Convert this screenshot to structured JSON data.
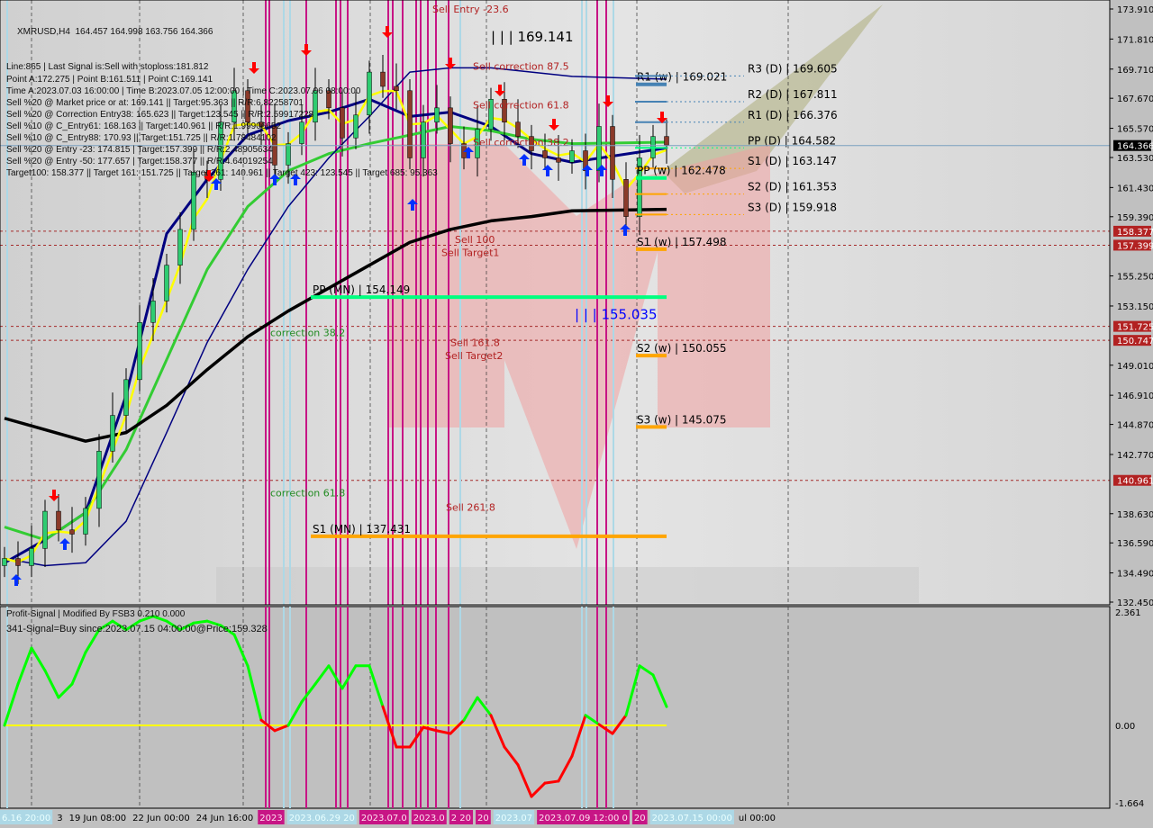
{
  "header": {
    "symbol_line": "XMRUSD,H4  164.457 164.998 163.756 164.366",
    "info_lines": [
      "Line:865 | Last Signal is:Sell with stoploss:181.812",
      "Point A:172.275 | Point B:161.511 | Point C:169.141",
      "Time A:2023.07.03 16:00:00 | Time B:2023.07.05 12:00:00 | Time C:2023.07.06 08:00:00",
      "Sell %20 @ Market price or at: 169.141 || Target:95.363 || R/R:6.82258701",
      "Sell %20 @ Correction Entry38: 165.623 || Target:123.545 || R/R:2.59917228",
      "Sell %10 @ C_Entry61: 168.163 || Target:140.961 || R/R:1.99906652",
      "Sell %10 @ C_Entry88: 170.93 || Target:151.725 || R/R:1.78484102",
      "Sell %20 @ Entry -23: 174.815 | Target:157.399 || R/R:2.48905634",
      "Sell %20 @ Entry -50: 177.657 | Target:158.377 || R/R:4.64019254",
      "Target100: 158.377 || Target 161: 151.725 || Target 261: 140.961 || Target 423: 123.545 || Target 685: 95.363"
    ]
  },
  "indicator": {
    "title": "Profit-Signal | Modified By FSB3 0.210 0.000",
    "signal": "341-Signal=Buy since:2023.07.15 04:00:00@Price:159.328"
  },
  "colors": {
    "bull": "#2ecc71",
    "bear": "#8b3a2a",
    "ma_fast": "#ffff00",
    "ma_navy": "#000080",
    "ma_green": "#33cc33",
    "ma_slow": "#000000",
    "vline_magenta": "#c71585",
    "vline_cyan": "#add8e6",
    "osc_up": "#00ff00",
    "osc_down": "#ff0000",
    "zero_line": "#ffff00",
    "price_tag": "#b22222"
  },
  "chart_data": [
    {
      "type": "candlestick",
      "title": "XMRUSD,H4",
      "ylim": [
        132.45,
        173.91
      ],
      "y_ticks": [
        "173.910",
        "171.810",
        "169.710",
        "167.670",
        "165.570",
        "163.530",
        "161.430",
        "159.390",
        "155.250",
        "153.150",
        "149.010",
        "146.910",
        "144.870",
        "142.770",
        "138.630",
        "136.590",
        "134.490",
        "132.450"
      ],
      "x_tick_labels": [
        {
          "text": "6.16 20:00",
          "style": "cyan"
        },
        {
          "text": "3",
          "style": "plain"
        },
        {
          "text": "19 Jun 08:00",
          "style": "plain"
        },
        {
          "text": "22 Jun 00:00",
          "style": "plain"
        },
        {
          "text": "24 Jun 16:00",
          "style": "plain"
        },
        {
          "text": "2023",
          "style": "magenta"
        },
        {
          "text": "2023.06.29 20",
          "style": "cyan"
        },
        {
          "text": "2023.07.0",
          "style": "magenta"
        },
        {
          "text": "2023.0",
          "style": "magenta"
        },
        {
          "text": "2 20",
          "style": "magenta"
        },
        {
          "text": "20",
          "style": "magenta"
        },
        {
          "text": "2023.07",
          "style": "cyan"
        },
        {
          "text": "2023.07.09 12:00 0",
          "style": "magenta"
        },
        {
          "text": "20",
          "style": "magenta"
        },
        {
          "text": "2023.07.15 00:00",
          "style": "cyan"
        },
        {
          "text": "ul 00:00",
          "style": "plain"
        }
      ],
      "current_price": "164.366",
      "price_tags": [
        "158.377",
        "157.399",
        "151.725",
        "150.747",
        "140.961"
      ],
      "closes": [
        135.5,
        135.0,
        136.2,
        138.8,
        137.5,
        137.2,
        139.0,
        143.0,
        145.5,
        148.0,
        152.0,
        153.5,
        156.0,
        158.5,
        162.5,
        162.0,
        166.0,
        168.2,
        166.0,
        165.7,
        163.0,
        164.5,
        166.0,
        168.2,
        167.0,
        164.9,
        166.5,
        169.5,
        168.5,
        168.2,
        163.5,
        166.0,
        167.0,
        164.5,
        163.5,
        165.5,
        167.6,
        166.0,
        165.0,
        164.0,
        163.5,
        163.2,
        164.0,
        162.6,
        165.7,
        162.0,
        159.4,
        163.5,
        165.0,
        164.4
      ],
      "ma_sample_bars": [
        0,
        3,
        6,
        9,
        12,
        15,
        18,
        21,
        24,
        27,
        30,
        33,
        36,
        39,
        42,
        49
      ],
      "series": [
        {
          "key": "navy_fast",
          "values": [
            135.2,
            136.8,
            138.7,
            146.9,
            158.2,
            162.0,
            165.1,
            166.1,
            166.7,
            167.6,
            166.4,
            166.7,
            165.7,
            163.8,
            163.2,
            164.2
          ]
        },
        {
          "key": "green",
          "values": [
            137.7,
            136.8,
            138.7,
            143.1,
            149.4,
            155.7,
            160.1,
            162.6,
            163.8,
            164.5,
            165.1,
            165.7,
            165.4,
            164.8,
            164.5,
            164.6
          ]
        },
        {
          "key": "navy_slow",
          "values": [
            135.5,
            135.0,
            135.2,
            138.1,
            144.3,
            150.6,
            155.7,
            160.1,
            163.5,
            166.4,
            169.5,
            169.8,
            169.8,
            169.5,
            169.2,
            169.0
          ]
        },
        {
          "key": "black",
          "values": [
            145.3,
            144.5,
            143.7,
            144.3,
            146.2,
            148.7,
            151.0,
            152.8,
            154.4,
            156.0,
            157.6,
            158.5,
            159.1,
            159.4,
            159.8,
            159.9
          ]
        }
      ],
      "pivots": [
        {
          "label": "R1 (w)",
          "value": "169.021",
          "price": 169.021,
          "period": "w",
          "color": "#4682b4"
        },
        {
          "label": "R3 (D)",
          "value": "169.605",
          "price": 169.605,
          "period": "D",
          "color": "#4682b4"
        },
        {
          "label": "R2 (D)",
          "value": "167.811",
          "price": 167.811,
          "period": "D",
          "color": "#4682b4"
        },
        {
          "label": "R1 (D)",
          "value": "166.376",
          "price": 166.376,
          "period": "D",
          "color": "#4682b4"
        },
        {
          "label": "PP (D)",
          "value": "164.582",
          "price": 164.582,
          "period": "D",
          "color": "#00ff7f"
        },
        {
          "label": "S1 (D)",
          "value": "163.147",
          "price": 163.147,
          "period": "D",
          "color": "#ffa500"
        },
        {
          "label": "PP (w)",
          "value": "162.478",
          "price": 162.478,
          "period": "w",
          "color": "#00ff7f"
        },
        {
          "label": "S2 (D)",
          "value": "161.353",
          "price": 161.353,
          "period": "D",
          "color": "#ffa500"
        },
        {
          "label": "S3 (D)",
          "value": "159.918",
          "price": 159.918,
          "period": "D",
          "color": "#ffa500"
        },
        {
          "label": "S1 (w)",
          "value": "157.498",
          "price": 157.498,
          "period": "w",
          "color": "#ffa500"
        },
        {
          "label": "PP (MN)",
          "value": "154.149",
          "price": 154.149,
          "period": "MN",
          "color": "#00ff7f"
        },
        {
          "label": "S2 (w)",
          "value": "150.055",
          "price": 150.055,
          "period": "w",
          "color": "#ffa500"
        },
        {
          "label": "S3 (w)",
          "value": "145.075",
          "price": 145.075,
          "period": "w",
          "color": "#ffa500"
        },
        {
          "label": "S1 (MN)",
          "value": "137.431",
          "price": 137.431,
          "period": "MN",
          "color": "#ffa500"
        }
      ],
      "annotations": [
        {
          "text": "Sell Entry -23.6",
          "price": 173.9,
          "color": "#b22222"
        },
        {
          "text": "| | | 169.141",
          "price": 171.9,
          "color": "#000000"
        },
        {
          "text": "Sell correction 87.5",
          "price": 169.9,
          "color": "#b22222"
        },
        {
          "text": "Sell correction 61.8",
          "price": 167.2,
          "color": "#b22222"
        },
        {
          "text": "Sell correction 38.2",
          "price": 164.6,
          "color": "#b22222"
        },
        {
          "text": "Sell 100",
          "price": 157.8,
          "color": "#b22222"
        },
        {
          "text": "Sell Target1",
          "price": 156.9,
          "color": "#b22222"
        },
        {
          "text": "| | | 155.035",
          "price": 152.5,
          "color": "#0000ff"
        },
        {
          "text": "correction 38.2",
          "price": 151.3,
          "color": "#228b22"
        },
        {
          "text": "Sell 161.8",
          "price": 150.6,
          "color": "#b22222"
        },
        {
          "text": "Sell Target2",
          "price": 149.7,
          "color": "#b22222"
        },
        {
          "text": "correction 61.8",
          "price": 140.1,
          "color": "#228b22"
        },
        {
          "text": "Sell 261.8",
          "price": 139.1,
          "color": "#b22222"
        }
      ]
    },
    {
      "type": "line",
      "title": "Profit-Signal | Modified By FSB3 0.210 0.000",
      "ylim": [
        -1.664,
        2.361
      ],
      "y_ticks": [
        "2.361",
        "0.00",
        "-1.664"
      ],
      "values": [
        0,
        0.86,
        1.61,
        1.14,
        0.58,
        0.86,
        1.52,
        1.99,
        2.17,
        1.99,
        2.17,
        2.27,
        2.17,
        1.99,
        2.13,
        2.17,
        2.08,
        1.89,
        1.24,
        0.11,
        -0.11,
        0,
        0.49,
        0.86,
        1.24,
        0.77,
        1.24,
        1.24,
        0.39,
        -0.45,
        -0.45,
        -0.04,
        -0.11,
        -0.17,
        0.11,
        0.58,
        0.21,
        -0.45,
        -0.82,
        -1.48,
        -1.2,
        -1.16,
        -0.64,
        0.21,
        0.02,
        -0.17,
        0.21,
        1.24,
        1.05,
        0.39
      ]
    }
  ]
}
